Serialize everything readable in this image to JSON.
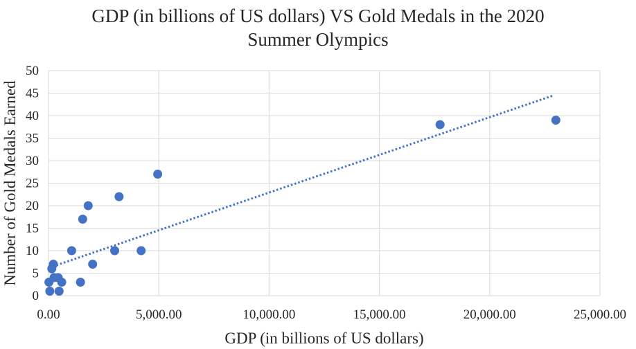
{
  "chart_data": {
    "type": "scatter",
    "title_lines": [
      "GDP (in billions of US dollars) VS Gold Medals in the 2020",
      "Summer Olympics"
    ],
    "xlabel": "GDP (in billions of US dollars)",
    "ylabel": "Number of Gold Medals Earned",
    "xlim": [
      0,
      25000
    ],
    "ylim": [
      0,
      50
    ],
    "x_ticks": [
      0,
      5000,
      10000,
      15000,
      20000,
      25000
    ],
    "x_tick_labels": [
      "0.00",
      "5,000.00",
      "10,000.00",
      "15,000.00",
      "20,000.00",
      "25,000.00"
    ],
    "y_ticks": [
      0,
      5,
      10,
      15,
      20,
      25,
      30,
      35,
      40,
      45,
      50
    ],
    "y_tick_labels": [
      "0",
      "5",
      "10",
      "15",
      "20",
      "25",
      "30",
      "35",
      "40",
      "45",
      "50"
    ],
    "grid": true,
    "legend": "none",
    "points": [
      {
        "x": 20,
        "y": 3
      },
      {
        "x": 60,
        "y": 1
      },
      {
        "x": 150,
        "y": 6
      },
      {
        "x": 220,
        "y": 7
      },
      {
        "x": 250,
        "y": 4
      },
      {
        "x": 440,
        "y": 4
      },
      {
        "x": 480,
        "y": 1
      },
      {
        "x": 600,
        "y": 3
      },
      {
        "x": 1050,
        "y": 10
      },
      {
        "x": 1450,
        "y": 3
      },
      {
        "x": 1550,
        "y": 17
      },
      {
        "x": 1800,
        "y": 20
      },
      {
        "x": 2000,
        "y": 7
      },
      {
        "x": 3000,
        "y": 10
      },
      {
        "x": 3200,
        "y": 22
      },
      {
        "x": 4200,
        "y": 10
      },
      {
        "x": 4950,
        "y": 27
      },
      {
        "x": 17750,
        "y": 38
      },
      {
        "x": 23000,
        "y": 39
      }
    ],
    "trendline": {
      "type": "linear",
      "style": "dotted",
      "from": {
        "x": 200,
        "y": 6.5
      },
      "to": {
        "x": 22900,
        "y": 44.5
      }
    },
    "colors": {
      "marker": "#4472c4",
      "trendline": "#4472c4",
      "grid": "#d9d9d9"
    }
  }
}
